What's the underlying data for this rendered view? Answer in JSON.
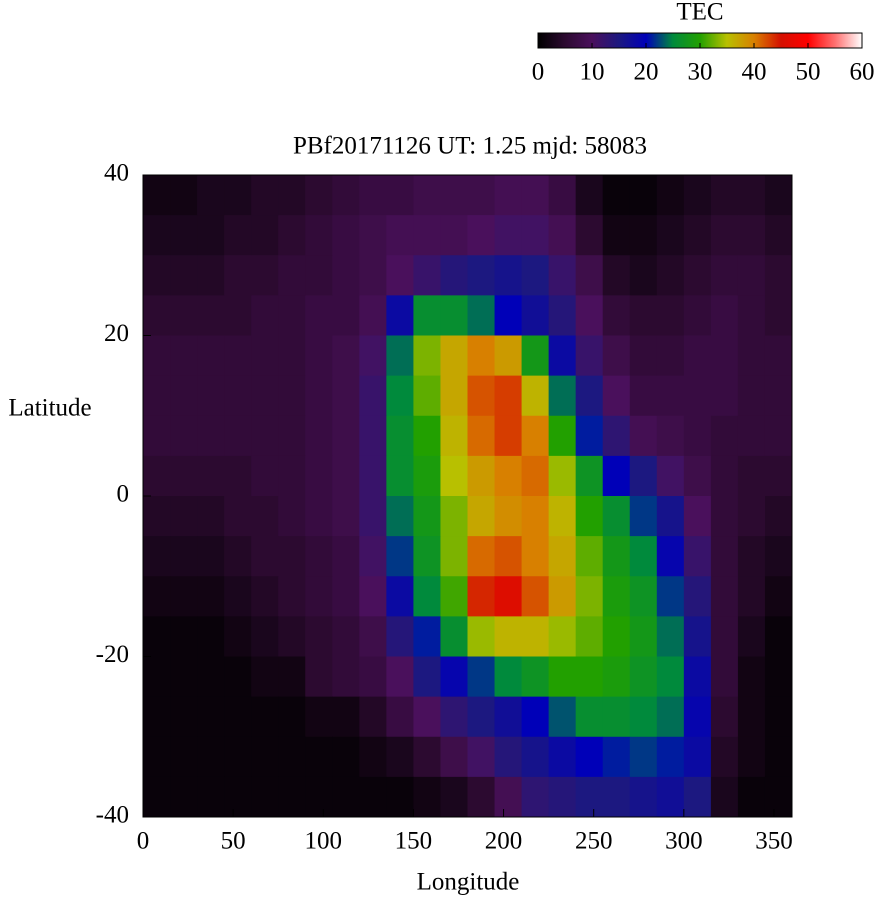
{
  "chart_data": {
    "type": "heatmap",
    "title": "PBf20171126  UT: 1.25  mjd: 58083",
    "xlabel": "Longitude",
    "ylabel": "Latitude",
    "colorbar_label": "TEC",
    "xlim": [
      0,
      360
    ],
    "ylim": [
      -40,
      40
    ],
    "xticks": [
      0,
      50,
      100,
      150,
      200,
      250,
      300,
      350
    ],
    "yticks": [
      -40,
      -20,
      0,
      20,
      40
    ],
    "clim": [
      0,
      60
    ],
    "cticks": [
      0,
      10,
      20,
      30,
      40,
      50,
      60
    ],
    "colormap": [
      "#000000",
      "#2c0a30",
      "#4a105c",
      "#1c1880",
      "#0000b8",
      "#008a3c",
      "#22a000",
      "#b8c000",
      "#d88000",
      "#d41000",
      "#ff0000",
      "#ff7070",
      "#ffffff"
    ],
    "x": [
      7.5,
      22.5,
      37.5,
      52.5,
      67.5,
      82.5,
      97.5,
      112.5,
      127.5,
      142.5,
      157.5,
      172.5,
      187.5,
      202.5,
      217.5,
      232.5,
      247.5,
      262.5,
      277.5,
      292.5,
      307.5,
      322.5,
      337.5,
      352.5
    ],
    "y": [
      37.5,
      32.5,
      27.5,
      22.5,
      17.5,
      12.5,
      7.5,
      2.5,
      -2.5,
      -7.5,
      -12.5,
      -17.5,
      -22.5,
      -27.5,
      -32.5,
      -37.5
    ],
    "values": [
      [
        2,
        2,
        3,
        3,
        4,
        4,
        5,
        6,
        7,
        7,
        8,
        8,
        8,
        9,
        9,
        7,
        3,
        1,
        1,
        2,
        3,
        4,
        4,
        3
      ],
      [
        3,
        3,
        3,
        4,
        4,
        5,
        6,
        7,
        8,
        9,
        9,
        9,
        10,
        11,
        11,
        9,
        5,
        2,
        2,
        3,
        4,
        5,
        5,
        4
      ],
      [
        4,
        4,
        4,
        5,
        5,
        6,
        6,
        7,
        8,
        10,
        12,
        14,
        15,
        16,
        15,
        12,
        8,
        4,
        3,
        4,
        5,
        6,
        6,
        5
      ],
      [
        5,
        5,
        5,
        5,
        6,
        6,
        7,
        7,
        9,
        18,
        26,
        26,
        24,
        20,
        17,
        14,
        10,
        6,
        5,
        5,
        6,
        7,
        6,
        5
      ],
      [
        6,
        6,
        6,
        6,
        6,
        6,
        7,
        8,
        11,
        24,
        33,
        37,
        40,
        38,
        28,
        18,
        12,
        8,
        6,
        6,
        7,
        7,
        6,
        6
      ],
      [
        6,
        6,
        6,
        6,
        6,
        6,
        7,
        8,
        12,
        25,
        32,
        37,
        42,
        43,
        36,
        24,
        15,
        10,
        7,
        7,
        7,
        7,
        6,
        6
      ],
      [
        6,
        6,
        6,
        6,
        6,
        6,
        7,
        8,
        12,
        26,
        30,
        36,
        41,
        43,
        40,
        30,
        21,
        13,
        9,
        8,
        7,
        6,
        6,
        6
      ],
      [
        5,
        5,
        5,
        5,
        6,
        6,
        7,
        8,
        12,
        26,
        29,
        35,
        38,
        40,
        41,
        34,
        27,
        20,
        15,
        11,
        8,
        6,
        5,
        5
      ],
      [
        4,
        4,
        4,
        5,
        5,
        6,
        7,
        8,
        12,
        24,
        28,
        33,
        37,
        39,
        40,
        36,
        30,
        26,
        22,
        16,
        10,
        6,
        5,
        4
      ],
      [
        3,
        3,
        3,
        4,
        5,
        5,
        6,
        7,
        11,
        22,
        27,
        33,
        41,
        42,
        40,
        37,
        32,
        28,
        25,
        19,
        12,
        6,
        4,
        3
      ],
      [
        2,
        2,
        2,
        3,
        4,
        5,
        6,
        7,
        10,
        18,
        25,
        31,
        44,
        46,
        42,
        38,
        33,
        29,
        27,
        22,
        14,
        6,
        4,
        2
      ],
      [
        1,
        1,
        1,
        2,
        3,
        4,
        5,
        6,
        8,
        14,
        21,
        26,
        34,
        36,
        36,
        34,
        32,
        30,
        28,
        24,
        16,
        6,
        3,
        1
      ],
      [
        1,
        1,
        1,
        1,
        2,
        2,
        5,
        6,
        7,
        10,
        15,
        19,
        22,
        25,
        27,
        30,
        30,
        29,
        27,
        25,
        18,
        6,
        2,
        1
      ],
      [
        1,
        1,
        1,
        1,
        1,
        1,
        2,
        2,
        4,
        7,
        10,
        13,
        15,
        17,
        20,
        23,
        26,
        26,
        25,
        24,
        19,
        5,
        2,
        1
      ],
      [
        1,
        1,
        1,
        1,
        1,
        1,
        1,
        1,
        2,
        3,
        5,
        8,
        11,
        14,
        16,
        18,
        20,
        21,
        22,
        21,
        18,
        4,
        2,
        1
      ],
      [
        1,
        1,
        1,
        1,
        1,
        1,
        1,
        1,
        1,
        1,
        2,
        3,
        5,
        9,
        13,
        14,
        15,
        15,
        16,
        17,
        15,
        3,
        1,
        1
      ]
    ]
  }
}
